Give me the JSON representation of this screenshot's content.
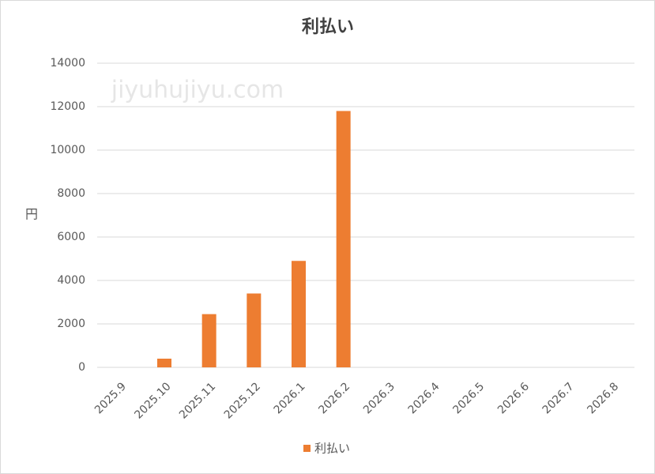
{
  "chart_data": {
    "type": "bar",
    "title": "利払い",
    "y_label": "円",
    "watermark": "jiyuhujiyu.com",
    "categories": [
      "2025.9",
      "2025.10",
      "2025.11",
      "2025.12",
      "2026.1",
      "2026.2",
      "2026.3",
      "2026.4",
      "2026.5",
      "2026.6",
      "2026.7",
      "2026.8"
    ],
    "series": [
      {
        "name": "利払い",
        "color": "#ed7d31",
        "values": [
          null,
          400,
          2450,
          3400,
          4900,
          11800,
          null,
          null,
          null,
          null,
          null,
          null
        ]
      }
    ],
    "ylim": [
      0,
      14000
    ],
    "yticks": [
      0,
      2000,
      4000,
      6000,
      8000,
      10000,
      12000,
      14000
    ],
    "grid": true,
    "legend": "bottom"
  }
}
